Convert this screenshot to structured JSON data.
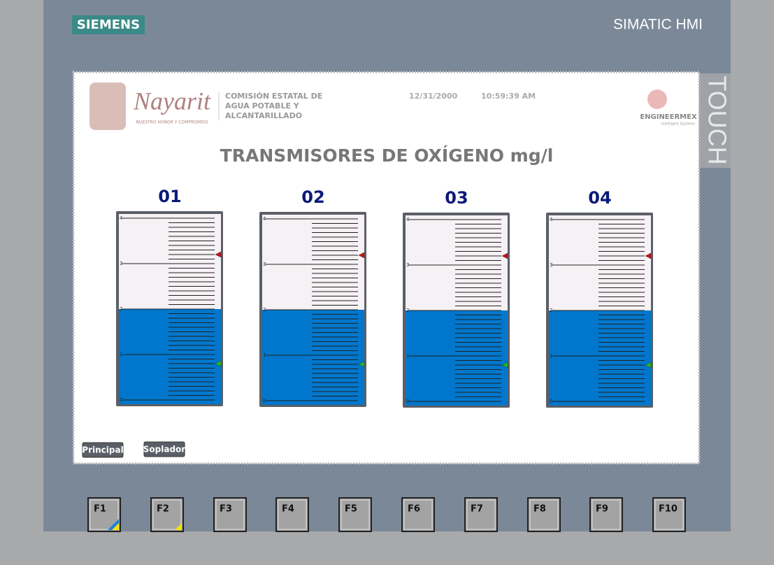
{
  "header": {
    "brand": "SIEMENS",
    "product": "SIMATIC HMI",
    "side_label": "TOUCH"
  },
  "screen": {
    "logo_text": "Nayarit",
    "logo_motto": "NUESTRO HONOR Y COMPROMISO",
    "agency": [
      "COMISIÓN ESTATAL DE",
      "AGUA POTABLE Y",
      "ALCANTARILLADO"
    ],
    "date": "12/31/2000",
    "time": "10:59:39 AM",
    "partner": "ENGINEERMEX",
    "partner_tagline": "Intelligent Systems",
    "title": "TRANSMISORES DE OXÍGENO mg/l",
    "scale": {
      "range": [
        0,
        4
      ],
      "ticks": [
        0,
        1,
        2,
        3,
        4
      ]
    },
    "gauges": [
      {
        "label": "01",
        "value": 2.0,
        "high": 3.2,
        "low": 0.8
      },
      {
        "label": "02",
        "value": 2.0,
        "high": 3.2,
        "low": 0.8
      },
      {
        "label": "03",
        "value": 2.0,
        "high": 3.2,
        "low": 0.8
      },
      {
        "label": "04",
        "value": 2.0,
        "high": 3.2,
        "low": 0.8
      }
    ],
    "buttons": [
      "Principal",
      "Soplador"
    ]
  },
  "function_keys": [
    "F1",
    "F2",
    "F3",
    "F4",
    "F5",
    "F6",
    "F7",
    "F8",
    "F9",
    "F10"
  ]
}
